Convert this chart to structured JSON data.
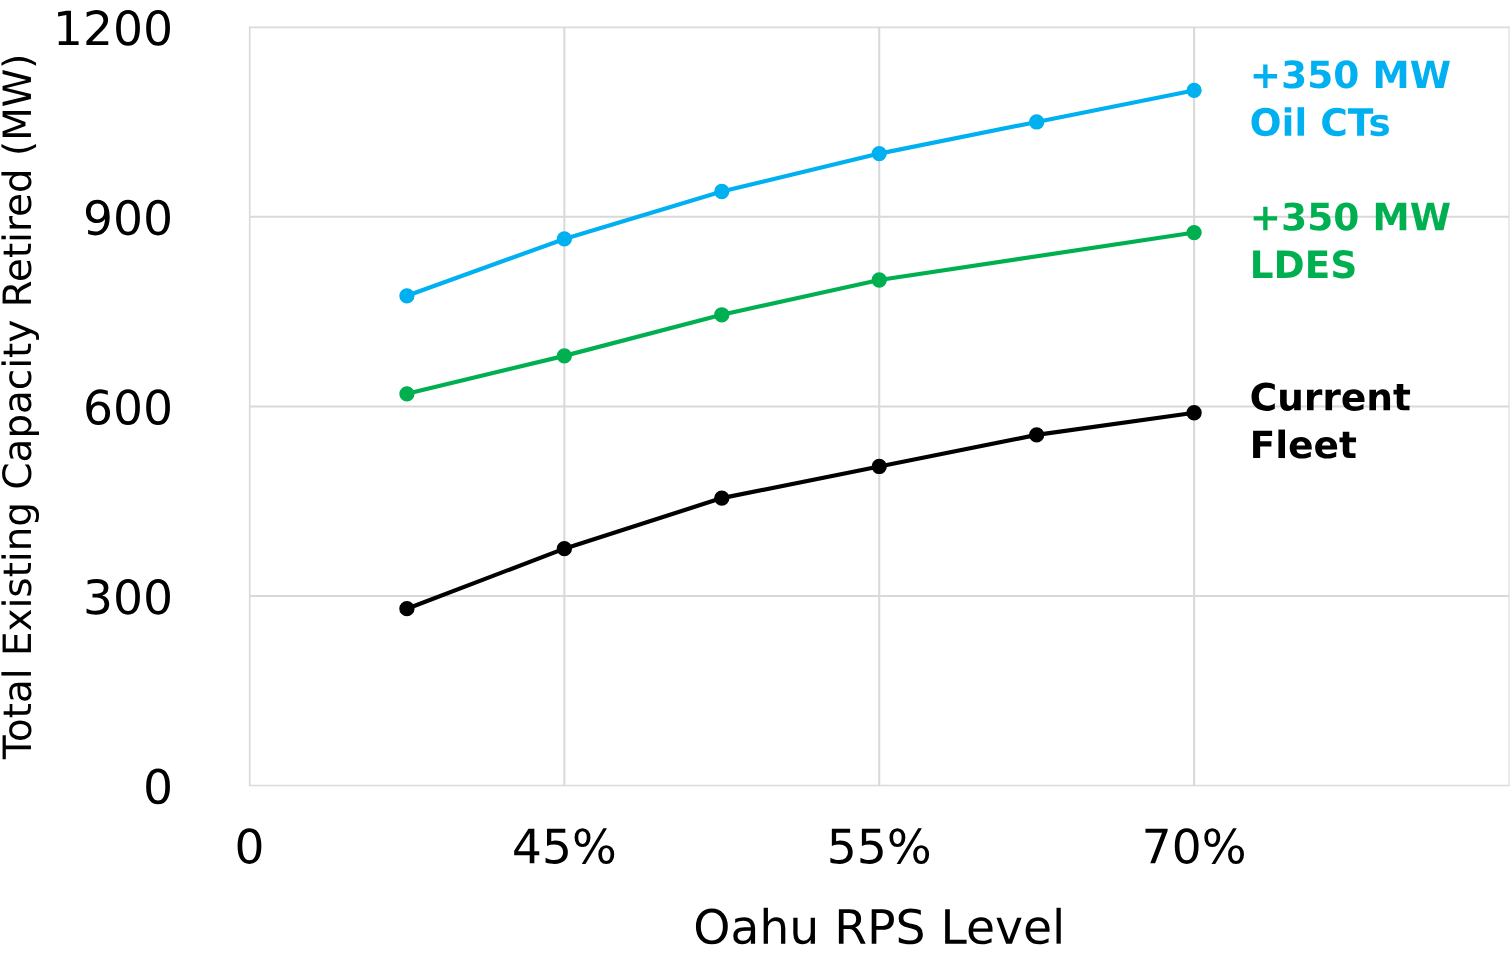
{
  "chart_data": {
    "type": "line",
    "xlabel": "Oahu RPS Level",
    "ylabel": "Total Existing Capacity Retired (MW)",
    "categories": [
      "0",
      null,
      "45%",
      null,
      "55%",
      null,
      "70%",
      null
    ],
    "ylim": [
      0,
      1200
    ],
    "yticks": [
      0,
      300,
      600,
      900,
      1200
    ],
    "grid": true,
    "legend": false,
    "marker": "circle",
    "line_style": "solid",
    "series": [
      {
        "name": "+350 MW\nOil CTs",
        "color": "#00b0f0",
        "values": [
          null,
          775,
          865,
          940,
          1000,
          1050,
          1100,
          null
        ]
      },
      {
        "name": "+350 MW\nLDES",
        "color": "#00b050",
        "values": [
          null,
          620,
          680,
          745,
          800,
          null,
          875,
          null
        ]
      },
      {
        "name": "Current\nFleet",
        "color": "#000000",
        "values": [
          null,
          280,
          375,
          455,
          505,
          555,
          590,
          null
        ]
      }
    ]
  }
}
